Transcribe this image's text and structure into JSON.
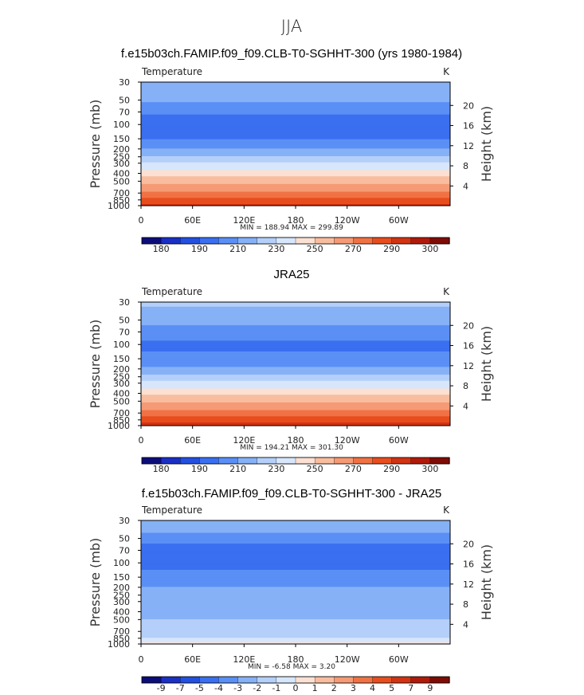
{
  "figure_title": "JJA",
  "chart_data": [
    {
      "type": "heatmap",
      "title": "f.e15b03ch.FAMIP.f09_f09.CLB-T0-SGHHT-300 (yrs 1980-1984)",
      "variable": "Temperature",
      "units": "K",
      "ylabel": "Pressure (mb)",
      "ylabel_right": "Height (km)",
      "x_ticks": [
        "0",
        "60E",
        "120E",
        "180",
        "120W",
        "60W"
      ],
      "x_tick_values": [
        0,
        60,
        120,
        180,
        240,
        300
      ],
      "xlim": [
        0,
        360
      ],
      "pressure_ticks": [
        30,
        50,
        70,
        100,
        150,
        200,
        250,
        300,
        400,
        500,
        700,
        850,
        1000
      ],
      "height_ticks": [
        4,
        8,
        12,
        16,
        20
      ],
      "stats": "MIN = 188.94   MAX = 299.89",
      "levels": [
        "180",
        "190",
        "210",
        "230",
        "250",
        "270",
        "290",
        "300"
      ],
      "profile": [
        [
          30,
          220
        ],
        [
          50,
          212
        ],
        [
          70,
          202
        ],
        [
          100,
          194
        ],
        [
          150,
          199
        ],
        [
          200,
          210
        ],
        [
          250,
          222
        ],
        [
          300,
          232
        ],
        [
          400,
          245
        ],
        [
          500,
          256
        ],
        [
          700,
          272
        ],
        [
          850,
          284
        ],
        [
          1000,
          294
        ]
      ]
    },
    {
      "type": "heatmap",
      "title": "JRA25",
      "variable": "Temperature",
      "units": "K",
      "ylabel": "Pressure (mb)",
      "ylabel_right": "Height (km)",
      "x_ticks": [
        "0",
        "60E",
        "120E",
        "180",
        "120W",
        "60W"
      ],
      "x_tick_values": [
        0,
        60,
        120,
        180,
        240,
        300
      ],
      "xlim": [
        0,
        360
      ],
      "pressure_ticks": [
        30,
        50,
        70,
        100,
        150,
        200,
        250,
        300,
        400,
        500,
        700,
        850,
        1000
      ],
      "height_ticks": [
        4,
        8,
        12,
        16,
        20
      ],
      "stats": "MIN = 194.21   MAX = 301.30",
      "levels": [
        "180",
        "190",
        "210",
        "230",
        "250",
        "270",
        "290",
        "300"
      ],
      "profile": [
        [
          30,
          222
        ],
        [
          50,
          214
        ],
        [
          70,
          206
        ],
        [
          100,
          198
        ],
        [
          150,
          202
        ],
        [
          200,
          212
        ],
        [
          250,
          224
        ],
        [
          300,
          234
        ],
        [
          400,
          247
        ],
        [
          500,
          258
        ],
        [
          700,
          274
        ],
        [
          850,
          285
        ],
        [
          1000,
          296
        ]
      ]
    },
    {
      "type": "heatmap",
      "title": "f.e15b03ch.FAMIP.f09_f09.CLB-T0-SGHHT-300 - JRA25",
      "variable": "Temperature",
      "units": "K",
      "ylabel": "Pressure (mb)",
      "ylabel_right": "Height (km)",
      "x_ticks": [
        "0",
        "60E",
        "120E",
        "180",
        "120W",
        "60W"
      ],
      "x_tick_values": [
        0,
        60,
        120,
        180,
        240,
        300
      ],
      "xlim": [
        0,
        360
      ],
      "pressure_ticks": [
        30,
        50,
        70,
        100,
        150,
        200,
        250,
        300,
        400,
        500,
        700,
        850,
        1000
      ],
      "height_ticks": [
        4,
        8,
        12,
        16,
        20
      ],
      "stats": "MIN =   -6.58   MAX =    3.20",
      "levels": [
        "-9",
        "-7",
        "-5",
        "-4",
        "-3",
        "-2",
        "-1",
        "0",
        "1",
        "2",
        "3",
        "4",
        "5",
        "7",
        "9"
      ],
      "profile": [
        [
          30,
          -2
        ],
        [
          50,
          -3.5
        ],
        [
          70,
          -4.5
        ],
        [
          100,
          -4.5
        ],
        [
          150,
          -3.5
        ],
        [
          200,
          -3
        ],
        [
          250,
          -3
        ],
        [
          300,
          -3
        ],
        [
          400,
          -2.5
        ],
        [
          500,
          -2
        ],
        [
          700,
          -1.5
        ],
        [
          850,
          -1
        ],
        [
          1000,
          0.5
        ]
      ]
    }
  ],
  "palettes": {
    "absolute": [
      "#0d0d7a",
      "#1a2fc4",
      "#2350e0",
      "#3a6ff0",
      "#5a8ff5",
      "#86b1f7",
      "#b4cff9",
      "#d7e6fb",
      "#fbe0d3",
      "#f8bd9f",
      "#f59a74",
      "#f07244",
      "#e84d1e",
      "#d23313",
      "#b01a0a",
      "#7e0c05"
    ],
    "difference": [
      "#0d0d7a",
      "#1a2fc4",
      "#2350e0",
      "#3a6ff0",
      "#5a8ff5",
      "#86b1f7",
      "#b4cff9",
      "#d7e6fb",
      "#fbe0d3",
      "#f8bd9f",
      "#f59a74",
      "#f07244",
      "#e84d1e",
      "#d23313",
      "#b01a0a",
      "#7e0c05"
    ]
  }
}
